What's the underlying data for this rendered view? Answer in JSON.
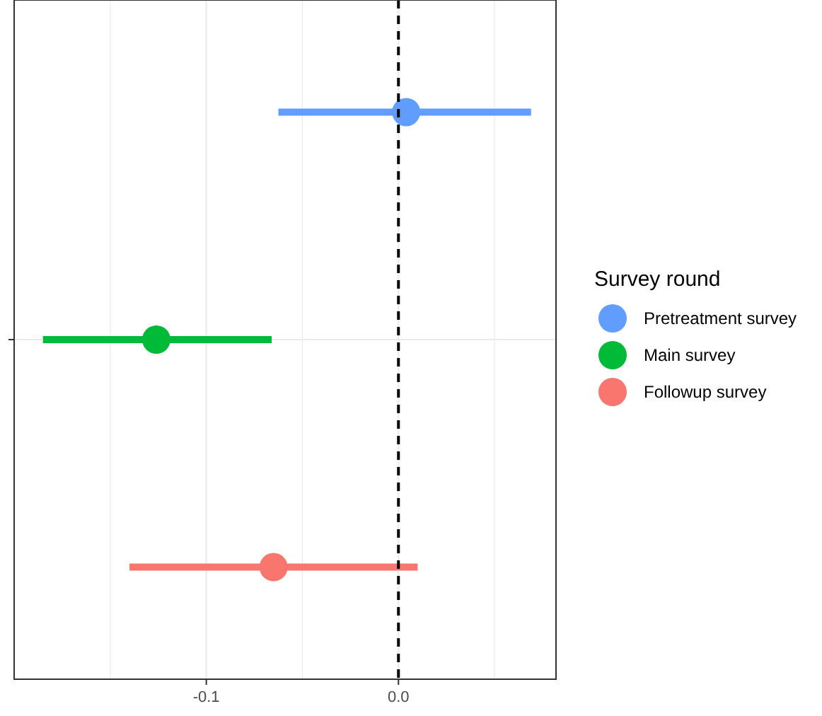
{
  "chart_data": {
    "type": "scatter",
    "orientation": "horizontal",
    "categories": [
      null
    ],
    "series": [
      {
        "name": "Pretreatment survey",
        "color": "#619cff",
        "values": [
          0.004
        ],
        "errors": [
          [
            -0.0625,
            0.069
          ]
        ]
      },
      {
        "name": "Main survey",
        "color": "#00ba38",
        "values": [
          -0.126
        ],
        "errors": [
          [
            -0.185,
            -0.066
          ]
        ]
      },
      {
        "name": "Followup survey",
        "color": "#f8766d",
        "values": [
          -0.065
        ],
        "errors": [
          [
            -0.14,
            0.01
          ]
        ]
      }
    ],
    "xlim": [
      -0.2,
      0.082
    ],
    "xticks": [
      {
        "value": -0.15,
        "label": null
      },
      -0.1,
      {
        "value": -0.05,
        "label": null
      },
      {
        "value": 0,
        "label": "0.0"
      },
      {
        "value": 0.05,
        "label": null
      }
    ],
    "grid": true,
    "marker": "circle",
    "legend": "right",
    "legend_title": "Survey round",
    "tick_labels": "x",
    "ref_lines": [
      {
        "axis": "x",
        "value": 0,
        "line_style": "dashed",
        "color": "#000000"
      }
    ]
  }
}
